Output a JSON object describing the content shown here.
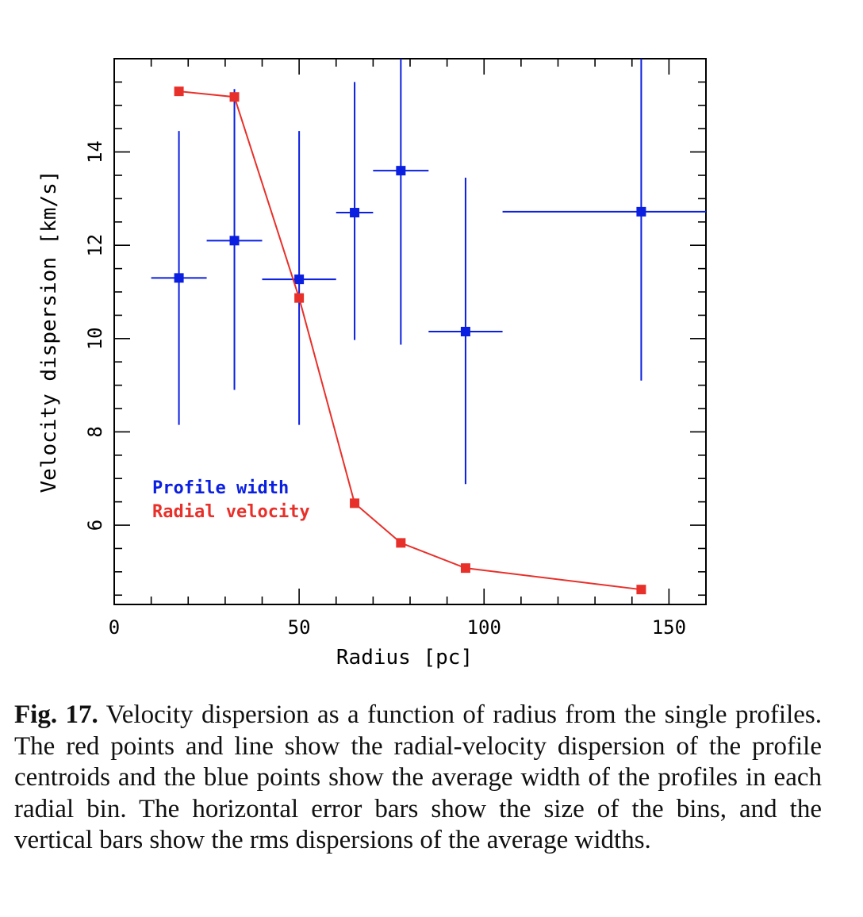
{
  "chart_data": {
    "type": "scatter",
    "xlabel": "Radius [pc]",
    "ylabel": "Velocity dispersion [km/s]",
    "xlim": [
      0,
      160
    ],
    "ylim": [
      4.3,
      16.0
    ],
    "x_ticks": [
      0,
      50,
      100,
      150
    ],
    "y_ticks": [
      6,
      8,
      10,
      12,
      14
    ],
    "grid": false,
    "legend_position": "bottom-left",
    "series": [
      {
        "name": "Profile width",
        "color": "#0a1fe0",
        "marker": "square",
        "line": false,
        "points": [
          {
            "x": 17.5,
            "y": 11.3,
            "xmin": 10,
            "xmax": 25,
            "ymin": 8.15,
            "ymax": 14.45
          },
          {
            "x": 32.5,
            "y": 12.1,
            "xmin": 25,
            "xmax": 40,
            "ymin": 8.9,
            "ymax": 15.35
          },
          {
            "x": 50,
            "y": 11.27,
            "xmin": 40,
            "xmax": 60,
            "ymin": 8.15,
            "ymax": 14.45
          },
          {
            "x": 65,
            "y": 12.7,
            "xmin": 60,
            "xmax": 70,
            "ymin": 9.97,
            "ymax": 15.5
          },
          {
            "x": 77.5,
            "y": 13.6,
            "xmin": 70,
            "xmax": 85,
            "ymin": 9.87,
            "ymax": 16.0
          },
          {
            "x": 95,
            "y": 10.15,
            "xmin": 85,
            "xmax": 105,
            "ymin": 6.88,
            "ymax": 13.45
          },
          {
            "x": 142.5,
            "y": 12.72,
            "xmin": 105,
            "xmax": 160,
            "ymin": 9.1,
            "ymax": 16.0
          }
        ]
      },
      {
        "name": "Radial velocity",
        "color": "#e8302a",
        "marker": "square",
        "line": true,
        "points": [
          {
            "x": 17.5,
            "y": 15.3
          },
          {
            "x": 32.5,
            "y": 15.18
          },
          {
            "x": 50,
            "y": 10.87
          },
          {
            "x": 65,
            "y": 6.47
          },
          {
            "x": 77.5,
            "y": 5.62
          },
          {
            "x": 95,
            "y": 5.08
          },
          {
            "x": 142.5,
            "y": 4.62
          }
        ]
      }
    ]
  },
  "caption": {
    "label": "Fig. 17.",
    "text": " Velocity dispersion as a function of radius from the single profiles. The red points and line show the radial-velocity dispersion of the profile centroids and the blue points show the average width of the profiles in each radial bin. The horizontal error bars show the size of the bins, and the vertical bars show the rms dispersions of the average widths."
  }
}
